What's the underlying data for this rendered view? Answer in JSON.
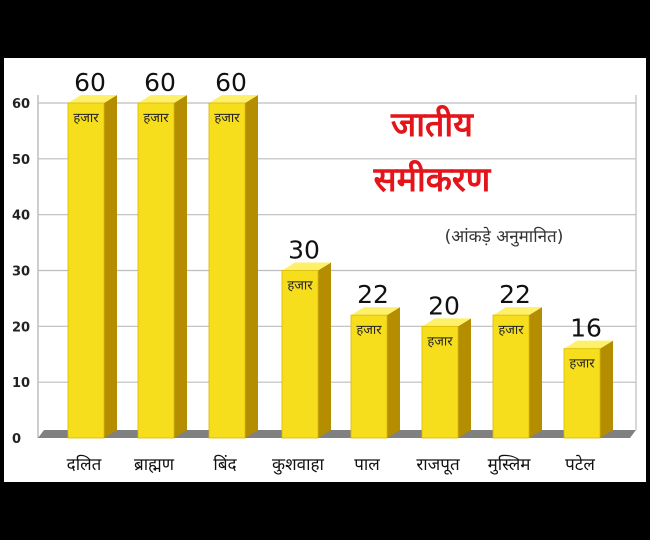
{
  "chart_data": {
    "type": "bar",
    "title": "जातीय",
    "subtitle": "समीकरण",
    "note": "(आंकड़े अनुमानित)",
    "unit_label": "हजार",
    "categories": [
      "दलित",
      "ब्राह्मण",
      "बिंद",
      "कुशवाहा",
      "पाल",
      "राजपूत",
      "मुस्लिम",
      "पटेल"
    ],
    "values": [
      60,
      60,
      60,
      30,
      22,
      20,
      22,
      16
    ],
    "value_labels": [
      "60",
      "60",
      "60",
      "30",
      "22",
      "20",
      "22",
      "16"
    ],
    "yticks": [
      "0",
      "10",
      "20",
      "30",
      "40",
      "50",
      "60"
    ],
    "ylim": [
      0,
      60
    ],
    "grid": true,
    "colors": {
      "bar_face": "#f7de1c",
      "bar_side": "#b58d00",
      "bar_top": "#fff06a",
      "grid": "#bdbdbd",
      "floor": "#808080",
      "title": "#e4141b"
    }
  }
}
